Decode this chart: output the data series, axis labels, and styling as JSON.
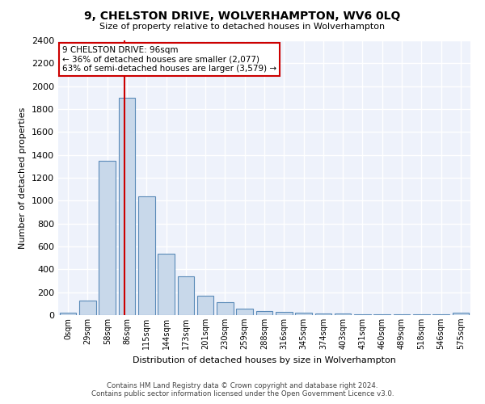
{
  "title": "9, CHELSTON DRIVE, WOLVERHAMPTON, WV6 0LQ",
  "subtitle": "Size of property relative to detached houses in Wolverhampton",
  "xlabel": "Distribution of detached houses by size in Wolverhampton",
  "ylabel": "Number of detached properties",
  "categories": [
    "0sqm",
    "29sqm",
    "58sqm",
    "86sqm",
    "115sqm",
    "144sqm",
    "173sqm",
    "201sqm",
    "230sqm",
    "259sqm",
    "288sqm",
    "316sqm",
    "345sqm",
    "374sqm",
    "403sqm",
    "431sqm",
    "460sqm",
    "489sqm",
    "518sqm",
    "546sqm",
    "575sqm"
  ],
  "values": [
    20,
    130,
    1350,
    1900,
    1040,
    540,
    340,
    170,
    110,
    55,
    35,
    25,
    20,
    15,
    15,
    5,
    5,
    5,
    5,
    5,
    20
  ],
  "bar_color": "#c8d8ea",
  "bar_edge_color": "#5a8ab8",
  "background_color": "#eef2fb",
  "grid_color": "#ffffff",
  "annotation_box_text": "9 CHELSTON DRIVE: 96sqm\n← 36% of detached houses are smaller (2,077)\n63% of semi-detached houses are larger (3,579) →",
  "annotation_box_color": "#ffffff",
  "annotation_box_edge_color": "#cc0000",
  "vline_color": "#cc0000",
  "ylim": [
    0,
    2400
  ],
  "yticks": [
    0,
    200,
    400,
    600,
    800,
    1000,
    1200,
    1400,
    1600,
    1800,
    2000,
    2200,
    2400
  ],
  "footnote1": "Contains HM Land Registry data © Crown copyright and database right 2024.",
  "footnote2": "Contains public sector information licensed under the Open Government Licence v3.0."
}
